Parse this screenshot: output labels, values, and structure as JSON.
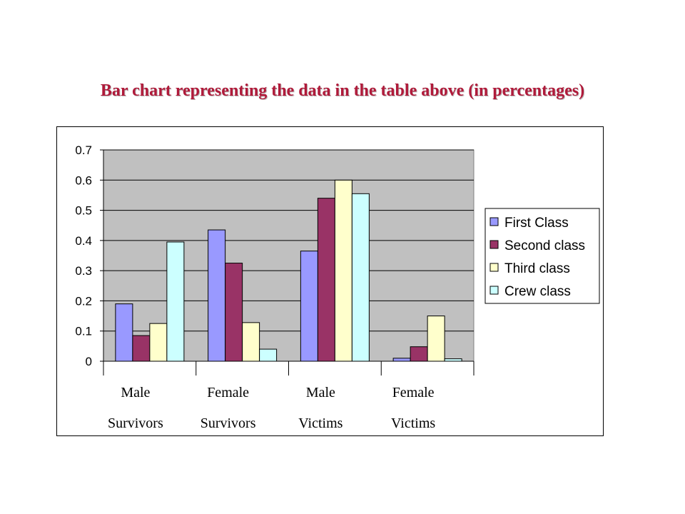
{
  "title": "Bar chart representing the data in the table above (in percentages)",
  "colors": {
    "title": "#b01a3a",
    "plot_background": "#c0c0c0",
    "gridline": "#000000"
  },
  "chart_data": {
    "type": "bar",
    "categories": [
      [
        "Male",
        "Survivors"
      ],
      [
        "Female",
        "Survivors"
      ],
      [
        "Male",
        "Victims"
      ],
      [
        "Female",
        "Victims"
      ]
    ],
    "series": [
      {
        "name": "First Class",
        "color": "#9999ff",
        "values": [
          0.19,
          0.435,
          0.365,
          0.01
        ]
      },
      {
        "name": "Second class",
        "color": "#993366",
        "values": [
          0.085,
          0.325,
          0.54,
          0.048
        ]
      },
      {
        "name": "Third class",
        "color": "#ffffcc",
        "values": [
          0.125,
          0.128,
          0.6,
          0.15
        ]
      },
      {
        "name": "Crew class",
        "color": "#ccffff",
        "values": [
          0.395,
          0.04,
          0.555,
          0.008
        ]
      }
    ],
    "ylim": [
      0,
      0.7
    ],
    "yticks": [
      "0",
      "0.1",
      "0.2",
      "0.3",
      "0.4",
      "0.5",
      "0.6",
      "0.7"
    ],
    "grid": true,
    "legend_position": "right"
  }
}
